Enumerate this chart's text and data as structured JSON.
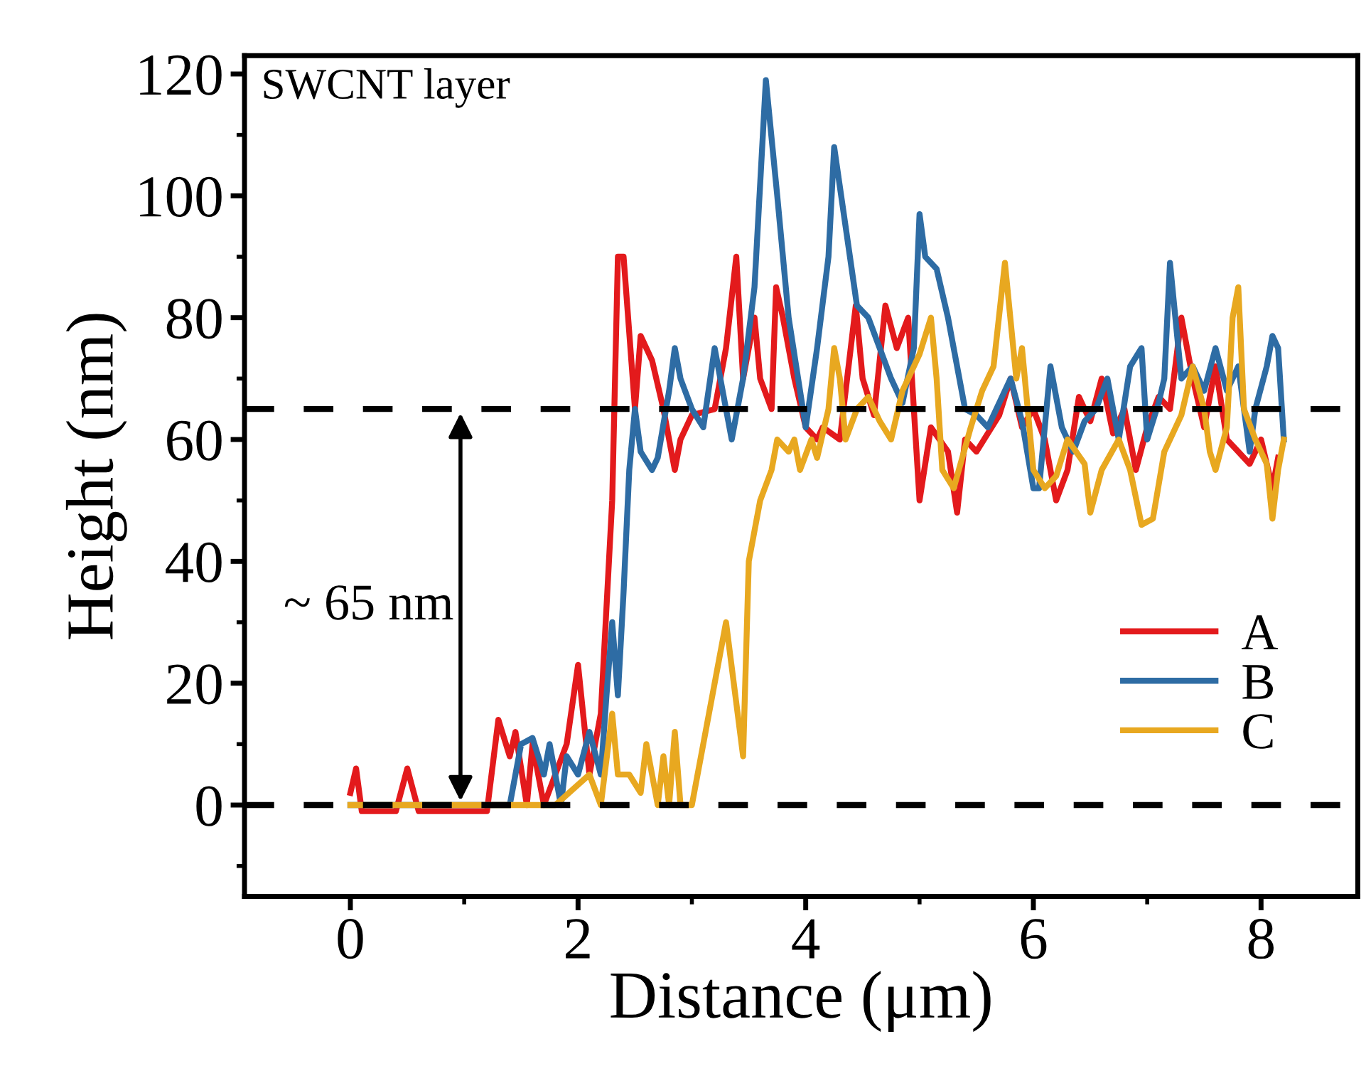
{
  "chart_data": {
    "type": "line",
    "xlabel": "Distance (μm)",
    "ylabel": "Height (nm)",
    "xlim": [
      -0.93,
      8.85
    ],
    "ylim": [
      -15,
      123
    ],
    "xticks": [
      0,
      2,
      4,
      6,
      8
    ],
    "yticks": [
      0,
      20,
      40,
      60,
      80,
      100,
      120
    ],
    "grid": false,
    "legend": "right",
    "marker": "none",
    "line_style": "solid",
    "annotations": [
      "SWCNT layer",
      "~ 65 nm"
    ],
    "ref_lines": [
      {
        "axis": "y",
        "value": 65,
        "color": "#000000",
        "line_style": "dashed"
      },
      {
        "axis": "y",
        "value": 0,
        "color": "#000000",
        "line_style": "dashed"
      }
    ],
    "series": [
      {
        "name": "A",
        "color": "#e31a1c",
        "x": [
          0,
          0.05,
          0.1,
          0.4,
          0.5,
          0.6,
          1.2,
          1.3,
          1.4,
          1.45,
          1.55,
          1.6,
          1.7,
          1.9,
          2.0,
          2.1,
          2.2,
          2.3,
          2.35,
          2.4,
          2.5,
          2.55,
          2.65,
          2.75,
          2.85,
          2.9,
          3.0,
          3.2,
          3.3,
          3.39,
          3.45,
          3.55,
          3.6,
          3.7,
          3.74,
          3.8,
          3.9,
          4.0,
          4.1,
          4.15,
          4.3,
          4.44,
          4.5,
          4.6,
          4.7,
          4.8,
          4.9,
          5.0,
          5.1,
          5.25,
          5.33,
          5.4,
          5.5,
          5.7,
          5.8,
          5.9,
          6.0,
          6.1,
          6.2,
          6.3,
          6.4,
          6.5,
          6.6,
          6.7,
          6.8,
          6.9,
          7.0,
          7.1,
          7.2,
          7.3,
          7.4,
          7.5,
          7.6,
          7.7,
          7.8,
          7.9,
          8.0,
          8.1,
          8.15
        ],
        "values": [
          2,
          6,
          -1,
          -1,
          6,
          -1,
          -1,
          14,
          8,
          12,
          0,
          10,
          0,
          10,
          23,
          5,
          15,
          50,
          90,
          90,
          65,
          77,
          73,
          65,
          55,
          60,
          64,
          65,
          75,
          90,
          70,
          80,
          70,
          65,
          85,
          80,
          70,
          62,
          60,
          62,
          60,
          82,
          70,
          64,
          82,
          75,
          80,
          50,
          62,
          58,
          48,
          60,
          58,
          64,
          70,
          62,
          65,
          60,
          50,
          55,
          67,
          63,
          70,
          61,
          65,
          55,
          62,
          67,
          65,
          80,
          70,
          62,
          72,
          60,
          58,
          56,
          60,
          52,
          57
        ]
      },
      {
        "name": "B",
        "color": "#2e6ca4",
        "x": [
          0,
          1.4,
          1.5,
          1.6,
          1.7,
          1.75,
          1.85,
          1.9,
          2.0,
          2.1,
          2.2,
          2.25,
          2.3,
          2.35,
          2.4,
          2.45,
          2.5,
          2.55,
          2.65,
          2.7,
          2.8,
          2.85,
          2.9,
          3.0,
          3.1,
          3.2,
          3.25,
          3.3,
          3.35,
          3.45,
          3.55,
          3.65,
          3.75,
          3.85,
          3.95,
          4.0,
          4.1,
          4.2,
          4.25,
          4.35,
          4.45,
          4.55,
          4.65,
          4.75,
          4.85,
          4.95,
          5.0,
          5.05,
          5.15,
          5.25,
          5.4,
          5.5,
          5.6,
          5.7,
          5.8,
          5.9,
          6.0,
          6.05,
          6.15,
          6.25,
          6.35,
          6.45,
          6.55,
          6.65,
          6.75,
          6.85,
          6.95,
          7.0,
          7.1,
          7.15,
          7.2,
          7.3,
          7.4,
          7.5,
          7.6,
          7.7,
          7.8,
          7.9,
          7.95,
          8.05,
          8.1,
          8.15,
          8.2
        ],
        "values": [
          0,
          0,
          10,
          11,
          5,
          10,
          0,
          8,
          5,
          12,
          5,
          18,
          30,
          18,
          35,
          55,
          65,
          58,
          55,
          57,
          68,
          75,
          70,
          65,
          62,
          75,
          70,
          65,
          60,
          70,
          85,
          119,
          100,
          80,
          68,
          62,
          75,
          90,
          108,
          95,
          82,
          80,
          75,
          70,
          66,
          75,
          97,
          90,
          88,
          80,
          65,
          64,
          62,
          66,
          70,
          63,
          52,
          52,
          72,
          62,
          58,
          63,
          65,
          70,
          60,
          72,
          75,
          60,
          66,
          70,
          89,
          70,
          72,
          68,
          75,
          68,
          72,
          58,
          65,
          72,
          77,
          75,
          60
        ]
      },
      {
        "name": "C",
        "color": "#e8a820",
        "x": [
          0,
          1.8,
          2.1,
          2.2,
          2.3,
          2.35,
          2.45,
          2.55,
          2.6,
          2.7,
          2.75,
          2.8,
          2.85,
          2.9,
          3.0,
          3.2,
          3.3,
          3.45,
          3.5,
          3.55,
          3.6,
          3.7,
          3.75,
          3.85,
          3.9,
          3.95,
          4.05,
          4.1,
          4.2,
          4.25,
          4.3,
          4.35,
          4.45,
          4.55,
          4.65,
          4.75,
          4.85,
          4.95,
          5.0,
          5.1,
          5.15,
          5.2,
          5.3,
          5.45,
          5.55,
          5.65,
          5.75,
          5.85,
          5.9,
          6.0,
          6.1,
          6.2,
          6.3,
          6.45,
          6.5,
          6.6,
          6.75,
          6.85,
          6.95,
          7.05,
          7.15,
          7.3,
          7.4,
          7.5,
          7.55,
          7.6,
          7.7,
          7.75,
          7.8,
          7.85,
          7.95,
          8.05,
          8.1,
          8.15,
          8.2
        ],
        "values": [
          0,
          0,
          5,
          0,
          15,
          5,
          5,
          2,
          10,
          0,
          8,
          0,
          12,
          0,
          0,
          20,
          30,
          8,
          40,
          45,
          50,
          55,
          60,
          58,
          60,
          55,
          60,
          57,
          65,
          75,
          70,
          60,
          65,
          67,
          63,
          60,
          68,
          72,
          74,
          80,
          70,
          55,
          52,
          62,
          68,
          72,
          89,
          70,
          75,
          55,
          52,
          54,
          60,
          56,
          48,
          55,
          60,
          55,
          46,
          47,
          58,
          64,
          72,
          65,
          58,
          55,
          62,
          80,
          85,
          65,
          60,
          56,
          47,
          55,
          60
        ]
      }
    ]
  }
}
